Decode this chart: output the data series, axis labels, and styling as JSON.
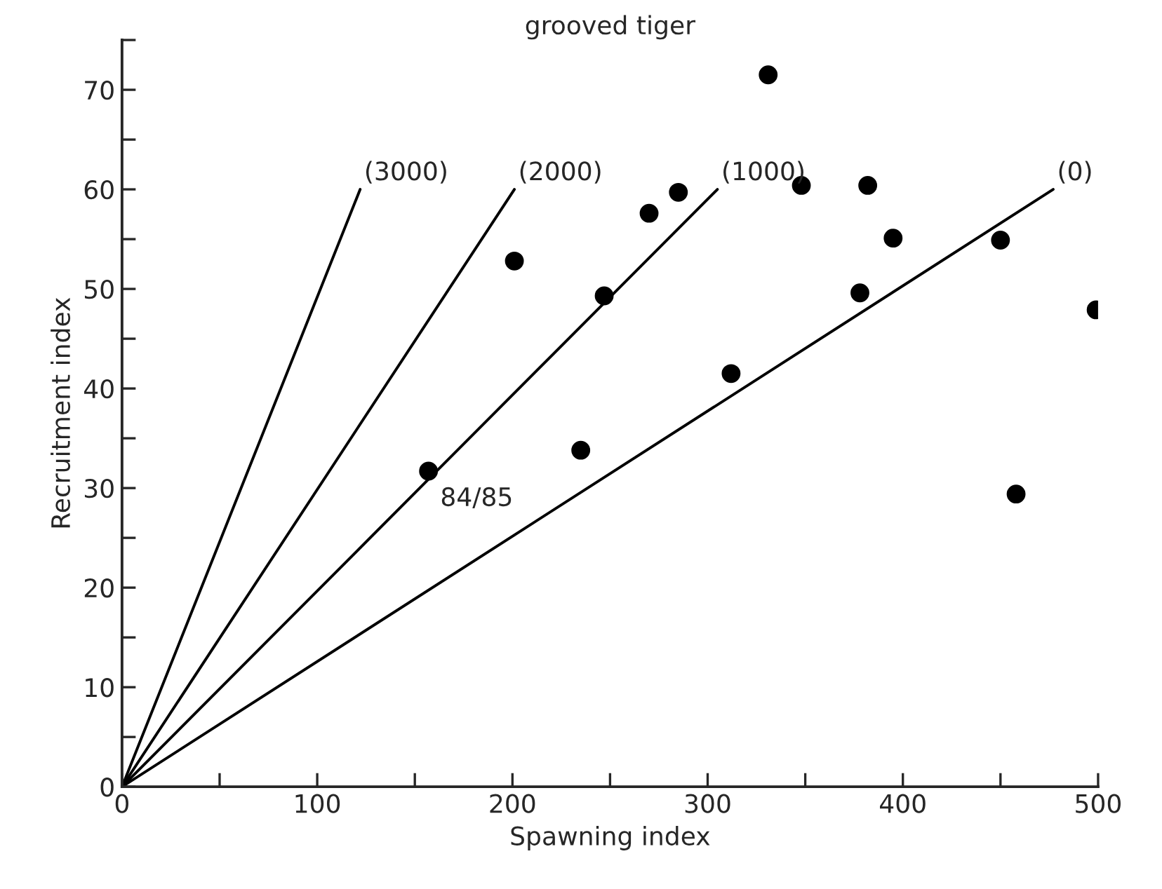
{
  "chart_data": {
    "type": "scatter",
    "title": "grooved tiger",
    "xlabel": "Spawning index",
    "ylabel": "Recruitment index",
    "xlim": [
      0,
      500
    ],
    "ylim": [
      0,
      75
    ],
    "xticks": [
      0,
      {
        "value": 50,
        "label": null
      },
      100,
      {
        "value": 150,
        "label": null
      },
      200,
      {
        "value": 250,
        "label": null
      },
      300,
      {
        "value": 350,
        "label": null
      },
      400,
      {
        "value": 450,
        "label": null
      },
      500
    ],
    "yticks": [
      0,
      {
        "value": 5,
        "label": null
      },
      10,
      {
        "value": 15,
        "label": null
      },
      20,
      {
        "value": 25,
        "label": null
      },
      30,
      {
        "value": 35,
        "label": null
      },
      40,
      {
        "value": 45,
        "label": null
      },
      50,
      {
        "value": 55,
        "label": null
      },
      60,
      {
        "value": 65,
        "label": null
      },
      70,
      {
        "value": 75,
        "label": null
      }
    ],
    "grid": false,
    "legend": false,
    "marker": "circle",
    "series": [
      {
        "color": "#000000",
        "x": [
          157,
          201,
          247,
          235,
          270,
          285,
          331,
          348,
          382,
          395,
          378,
          312,
          450,
          458,
          499
        ],
        "values": [
          31.7,
          52.8,
          49.3,
          33.8,
          57.6,
          59.7,
          71.5,
          60.4,
          60.4,
          55.1,
          49.6,
          41.5,
          54.9,
          29.4,
          47.9
        ]
      },
      {
        "type": "line",
        "name": "(3000)",
        "color": "#000000",
        "line_style": "solid",
        "marker": "none",
        "x": [
          0,
          122
        ],
        "values": [
          0,
          60
        ]
      },
      {
        "type": "line",
        "name": "(2000)",
        "color": "#000000",
        "line_style": "solid",
        "marker": "none",
        "x": [
          0,
          201
        ],
        "values": [
          0,
          60
        ]
      },
      {
        "type": "line",
        "name": "(1000)",
        "color": "#000000",
        "line_style": "solid",
        "marker": "none",
        "x": [
          0,
          305
        ],
        "values": [
          0,
          60
        ]
      },
      {
        "type": "line",
        "name": "(0)",
        "color": "#000000",
        "line_style": "solid",
        "marker": "none",
        "x": [
          0,
          477
        ],
        "values": [
          0,
          60
        ]
      }
    ],
    "annotations": [
      {
        "text": "84/85",
        "x": 157,
        "y": 31.7
      }
    ]
  }
}
